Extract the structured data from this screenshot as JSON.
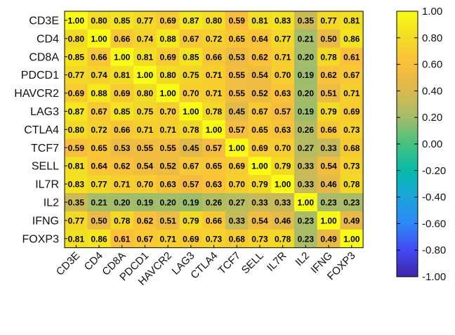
{
  "chart_data": {
    "type": "heatmap",
    "rows": [
      "CD3E",
      "CD4",
      "CD8A",
      "PDCD1",
      "HAVCR2",
      "LAG3",
      "CTLA4",
      "TCF7",
      "SELL",
      "IL7R",
      "IL2",
      "IFNG",
      "FOXP3"
    ],
    "cols": [
      "CD3E",
      "CD4",
      "CD8A",
      "PDCD1",
      "HAVCR2",
      "LAG3",
      "CTLA4",
      "TCF7",
      "SELL",
      "IL7R",
      "IL2",
      "IFNG",
      "FOXP3"
    ],
    "values": [
      [
        1.0,
        0.8,
        0.85,
        0.77,
        0.69,
        0.87,
        0.8,
        0.59,
        0.81,
        0.83,
        0.35,
        0.77,
        0.81
      ],
      [
        0.8,
        1.0,
        0.66,
        0.74,
        0.88,
        0.67,
        0.72,
        0.65,
        0.64,
        0.77,
        0.21,
        0.5,
        0.86
      ],
      [
        0.85,
        0.66,
        1.0,
        0.81,
        0.69,
        0.85,
        0.66,
        0.53,
        0.62,
        0.71,
        0.2,
        0.78,
        0.61
      ],
      [
        0.77,
        0.74,
        0.81,
        1.0,
        0.8,
        0.75,
        0.71,
        0.55,
        0.54,
        0.7,
        0.19,
        0.62,
        0.67
      ],
      [
        0.69,
        0.88,
        0.69,
        0.8,
        1.0,
        0.7,
        0.71,
        0.55,
        0.52,
        0.63,
        0.2,
        0.51,
        0.71
      ],
      [
        0.87,
        0.67,
        0.85,
        0.75,
        0.7,
        1.0,
        0.78,
        0.45,
        0.67,
        0.57,
        0.19,
        0.79,
        0.69
      ],
      [
        0.8,
        0.72,
        0.66,
        0.71,
        0.71,
        0.78,
        1.0,
        0.57,
        0.65,
        0.63,
        0.26,
        0.66,
        0.73
      ],
      [
        0.59,
        0.65,
        0.53,
        0.55,
        0.55,
        0.45,
        0.57,
        1.0,
        0.69,
        0.7,
        0.27,
        0.33,
        0.68
      ],
      [
        0.81,
        0.64,
        0.62,
        0.54,
        0.52,
        0.67,
        0.65,
        0.69,
        1.0,
        0.79,
        0.33,
        0.54,
        0.73
      ],
      [
        0.83,
        0.77,
        0.71,
        0.7,
        0.63,
        0.57,
        0.63,
        0.7,
        0.79,
        1.0,
        0.33,
        0.46,
        0.78
      ],
      [
        0.35,
        0.21,
        0.2,
        0.19,
        0.2,
        0.19,
        0.26,
        0.27,
        0.33,
        0.33,
        1.0,
        0.23,
        0.23
      ],
      [
        0.77,
        0.5,
        0.78,
        0.62,
        0.51,
        0.79,
        0.66,
        0.33,
        0.54,
        0.46,
        0.23,
        1.0,
        0.49
      ],
      [
        0.81,
        0.86,
        0.61,
        0.67,
        0.71,
        0.69,
        0.73,
        0.68,
        0.73,
        0.78,
        0.23,
        0.49,
        1.0
      ]
    ],
    "value_range": [
      -1,
      1
    ],
    "colorbar_ticks": [
      "1.00",
      "0.80",
      "0.60",
      "0.40",
      "0.20",
      "0.00",
      "-0.20",
      "-0.40",
      "-0.60",
      "-0.80",
      "-1.00"
    ],
    "colormap": "parula",
    "colormap_stops": [
      "#3e26a8",
      "#4149f2",
      "#2e87f7",
      "#1aa5da",
      "#07baa8",
      "#46c17f",
      "#a3bd6a",
      "#dab94e",
      "#fbbe3c",
      "#f2dc24",
      "#f9fb15"
    ]
  }
}
